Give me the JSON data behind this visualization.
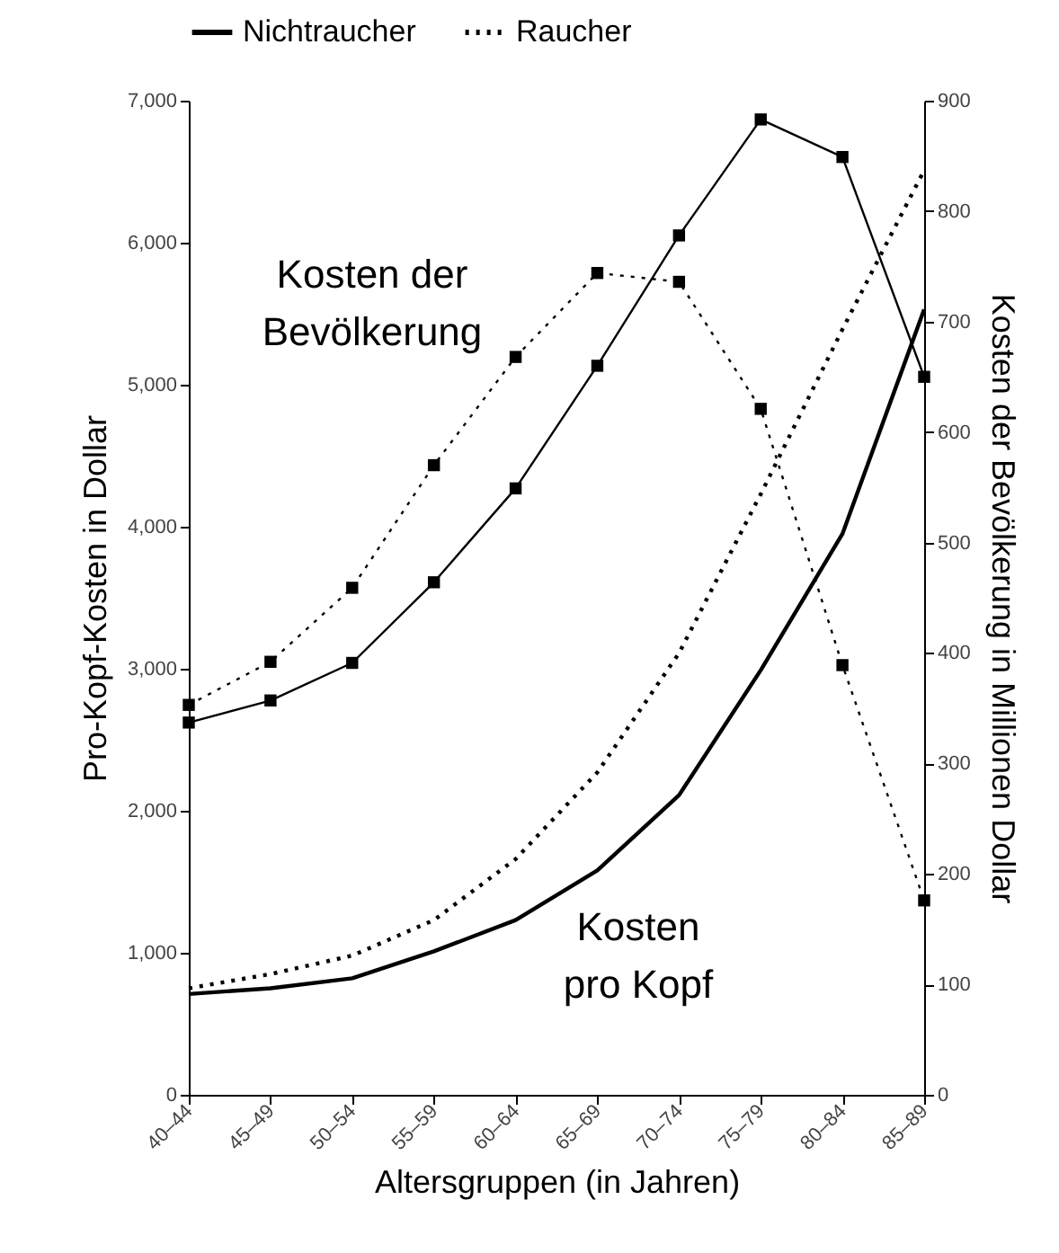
{
  "chart_data": {
    "type": "line",
    "xlabel": "Altersgruppen (in Jahren)",
    "ylabel": "Pro-Kopf-Kosten in Dollar",
    "y2label": "Kosten der Bevölkerung in Millionen Dollar",
    "categories": [
      "40–44",
      "45–49",
      "50–54",
      "55–59",
      "60–64",
      "65–69",
      "70–74",
      "75–79",
      "80–84",
      "85–89"
    ],
    "series": [
      {
        "name": "Nichtraucher",
        "color": "#000000",
        "line_style": "solid",
        "marker": "none",
        "values": [
          710,
          750,
          820,
          1010,
          1230,
          1580,
          2110,
          2990,
          3950,
          5530
        ]
      },
      {
        "name": "Raucher",
        "color": "#000000",
        "line_style": "dotted",
        "marker": "none",
        "values": [
          750,
          850,
          980,
          1230,
          1660,
          2270,
          3110,
          4230,
          5390,
          6510
        ]
      },
      {
        "color": "#000000",
        "line_style": "solid",
        "marker": "square",
        "axis": "y2",
        "values": [
          337,
          357,
          391,
          464,
          549,
          660,
          778,
          883,
          849,
          650
        ]
      },
      {
        "color": "#000000",
        "line_style": "dotted",
        "marker": "square",
        "axis": "y2",
        "values": [
          353,
          392,
          459,
          570,
          668,
          744,
          736,
          621,
          389,
          176
        ]
      }
    ],
    "ylim": [
      0,
      7000
    ],
    "yticks": [
      0,
      {
        "value": 1000,
        "label": "1,000"
      },
      {
        "value": 2000,
        "label": "2,000"
      },
      {
        "value": 3000,
        "label": "3,000"
      },
      {
        "value": 4000,
        "label": "4,000"
      },
      {
        "value": 5000,
        "label": "5,000"
      },
      {
        "value": 6000,
        "label": "6,000"
      },
      {
        "value": 7000,
        "label": "7,000"
      }
    ],
    "y2lim": [
      0,
      900
    ],
    "y2ticks": [
      0,
      100,
      200,
      300,
      400,
      500,
      600,
      700,
      800,
      900
    ],
    "annotations": [
      "Kosten der\nBevölkerung",
      "Kosten\npro Kopf"
    ],
    "legend": "top"
  }
}
